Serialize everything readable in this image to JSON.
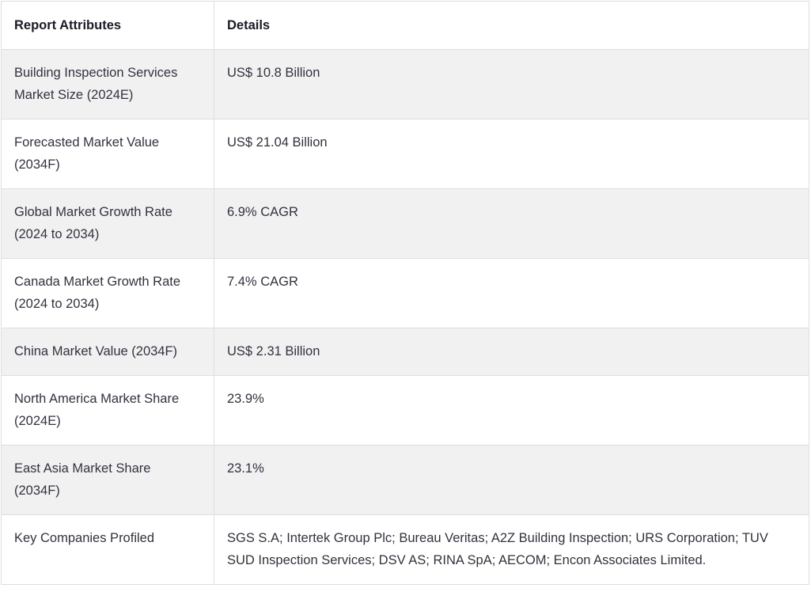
{
  "table": {
    "headers": {
      "attribute": "Report Attributes",
      "detail": "Details"
    },
    "rows": [
      {
        "attribute": "Building Inspection Services Market Size (2024E)",
        "detail": "US$ 10.8 Billion"
      },
      {
        "attribute": "Forecasted Market Value (2034F)",
        "detail": "US$ 21.04 Billion"
      },
      {
        "attribute": "Global Market Growth Rate (2024 to 2034)",
        "detail": "6.9% CAGR"
      },
      {
        "attribute": "Canada Market Growth Rate (2024 to 2034)",
        "detail": "7.4% CAGR"
      },
      {
        "attribute": "China Market Value (2034F)",
        "detail": "US$ 2.31 Billion"
      },
      {
        "attribute": "North America Market Share (2024E)",
        "detail": "23.9%"
      },
      {
        "attribute": "East Asia Market Share (2034F)",
        "detail": "23.1%"
      },
      {
        "attribute": "Key Companies Profiled",
        "detail": "SGS S.A; Intertek Group Plc; Bureau Veritas; A2Z Building Inspection; URS Corporation; TUV SUD Inspection Services; DSV AS; RINA SpA; AECOM; Encon Associates Limited."
      }
    ],
    "colors": {
      "stripe_background": "#f1f1f2",
      "row_background": "#ffffff",
      "border": "#dcdee2",
      "header_text": "#1b1b26",
      "body_text": "#32323e"
    }
  }
}
